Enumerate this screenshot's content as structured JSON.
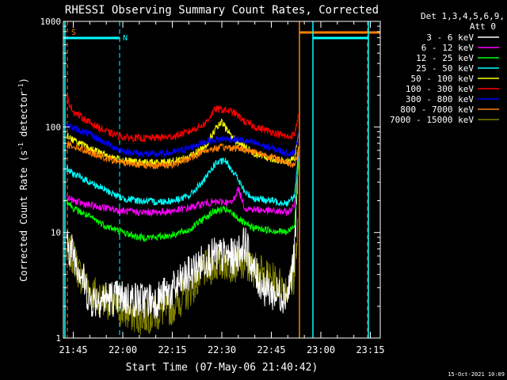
{
  "chart_data": {
    "type": "line",
    "title": "RHESSI Observing Summary Count Rates, Corrected",
    "ylabel": "Corrected Count Rate (s⁻¹ detector⁻¹)",
    "ylabel_main": "Corrected Count Rate (s",
    "ylabel_mid": " detector",
    "ylabel_sup": "-1",
    "ylabel_end": ")",
    "xlabel": "Start Time (07-May-06 21:40:42)",
    "timestamp": "15-Oct-2021 10:09",
    "yscale": "log",
    "ylim": [
      1,
      1000
    ],
    "y_tick_labels": [
      "1",
      "10",
      "100",
      "1000"
    ],
    "xlim_minutes": [
      21.7,
      23.3
    ],
    "x_tick_labels": [
      "21:45",
      "22:00",
      "22:15",
      "22:30",
      "22:45",
      "23:00",
      "23:15"
    ],
    "legend": {
      "placement": "top-right",
      "header1": "Det 1,3,4,5,6,9,",
      "header2": "Att 0"
    },
    "markers": [
      {
        "label": "S",
        "color": "#ff8000"
      },
      {
        "label": "N",
        "color": "#00ffff"
      }
    ],
    "series": [
      {
        "name": "3 - 6 keV",
        "color": "#ffffff",
        "x": [
          "21:43",
          "21:45",
          "21:47",
          "21:50",
          "21:55",
          "22:00",
          "22:05",
          "22:10",
          "22:15",
          "22:20",
          "22:25",
          "22:28",
          "22:31",
          "22:34",
          "22:37",
          "22:40",
          "22:43",
          "22:46",
          "22:50",
          "22:52",
          "22:53",
          "22:54"
        ],
        "y": [
          7.5,
          6.5,
          4.5,
          2.3,
          2.4,
          2.4,
          2.3,
          2.3,
          2.8,
          4,
          5.5,
          6,
          6,
          5.8,
          8,
          4,
          3,
          2.6,
          2.6,
          6,
          40,
          220
        ]
      },
      {
        "name": "6 - 12 keV",
        "color": "#ff00ff",
        "x": [
          "21:43",
          "21:45",
          "21:50",
          "21:55",
          "22:00",
          "22:05",
          "22:10",
          "22:15",
          "22:20",
          "22:25",
          "22:30",
          "22:33",
          "22:35",
          "22:37",
          "22:40",
          "22:45",
          "22:50",
          "22:52",
          "22:53",
          "22:54"
        ],
        "y": [
          22,
          20,
          18,
          17,
          16,
          15.5,
          15.5,
          16,
          17,
          19,
          19.5,
          19,
          26,
          17,
          16.5,
          16,
          15.5,
          18,
          40,
          200
        ]
      },
      {
        "name": "12 - 25 keV",
        "color": "#00ff00",
        "x": [
          "21:43",
          "21:45",
          "21:50",
          "21:55",
          "22:00",
          "22:05",
          "22:10",
          "22:15",
          "22:20",
          "22:25",
          "22:28",
          "22:31",
          "22:34",
          "22:37",
          "22:40",
          "22:45",
          "22:50",
          "22:52",
          "22:53",
          "22:54"
        ],
        "y": [
          20,
          17,
          14,
          11.5,
          10,
          9,
          9,
          9.5,
          10.5,
          14,
          16,
          16.5,
          14.5,
          12,
          11,
          10.5,
          10,
          12,
          35,
          180
        ]
      },
      {
        "name": "25 - 50 keV",
        "color": "#00ffff",
        "x": [
          "21:43",
          "21:45",
          "21:50",
          "21:55",
          "22:00",
          "22:05",
          "22:10",
          "22:15",
          "22:20",
          "22:25",
          "22:28",
          "22:31",
          "22:34",
          "22:37",
          "22:40",
          "22:45",
          "22:50",
          "22:52",
          "22:53",
          "22:54"
        ],
        "y": [
          40,
          36,
          30,
          25,
          21,
          20,
          19.5,
          20,
          22,
          32,
          45,
          48,
          36,
          24,
          21,
          20,
          19,
          22,
          45,
          200
        ]
      },
      {
        "name": "50 - 100 keV",
        "color": "#ffff00",
        "x": [
          "21:43",
          "21:45",
          "21:50",
          "21:55",
          "22:00",
          "22:05",
          "22:10",
          "22:15",
          "22:20",
          "22:25",
          "22:28",
          "22:30",
          "22:32",
          "22:34",
          "22:37",
          "22:40",
          "22:45",
          "22:50",
          "22:52",
          "22:53",
          "22:54"
        ],
        "y": [
          85,
          75,
          62,
          54,
          48,
          46,
          46,
          47,
          52,
          65,
          95,
          110,
          90,
          75,
          64,
          56,
          50,
          46,
          50,
          80,
          150
        ]
      },
      {
        "name": "100 - 300 keV",
        "color": "#ff0000",
        "x": [
          "21:43",
          "21:45",
          "21:50",
          "21:55",
          "22:00",
          "22:05",
          "22:10",
          "22:15",
          "22:20",
          "22:25",
          "22:28",
          "22:31",
          "22:34",
          "22:37",
          "22:40",
          "22:45",
          "22:50",
          "22:52",
          "22:53",
          "22:54"
        ],
        "y": [
          190,
          140,
          110,
          90,
          80,
          78,
          79,
          81,
          90,
          108,
          148,
          145,
          135,
          112,
          100,
          90,
          80,
          85,
          120,
          230
        ]
      },
      {
        "name": "300 - 800 keV",
        "color": "#0000ff",
        "x": [
          "21:43",
          "21:45",
          "21:50",
          "21:55",
          "22:00",
          "22:05",
          "22:10",
          "22:15",
          "22:20",
          "22:25",
          "22:30",
          "22:35",
          "22:40",
          "22:45",
          "22:50",
          "22:52",
          "22:53",
          "22:54"
        ],
        "y": [
          103,
          98,
          85,
          70,
          59,
          56,
          55,
          57,
          63,
          73,
          77,
          76,
          70,
          63,
          56,
          58,
          75,
          140
        ]
      },
      {
        "name": "800 - 7000 keV",
        "color": "#ff8000",
        "x": [
          "21:43",
          "21:45",
          "21:50",
          "21:55",
          "22:00",
          "22:05",
          "22:10",
          "22:15",
          "22:20",
          "22:25",
          "22:30",
          "22:35",
          "22:40",
          "22:45",
          "22:50",
          "22:52",
          "22:53",
          "22:54"
        ],
        "y": [
          68,
          66,
          58,
          50,
          46,
          44,
          43,
          44,
          50,
          60,
          64,
          63,
          58,
          52,
          46,
          44,
          55,
          110
        ]
      },
      {
        "name": "7000 - 15000 keV",
        "color": "#808000",
        "x": [
          "21:43",
          "21:45",
          "21:47",
          "21:50",
          "21:55",
          "22:00",
          "22:05",
          "22:10",
          "22:15",
          "22:20",
          "22:25",
          "22:30",
          "22:35",
          "22:40",
          "22:45",
          "22:50",
          "22:52",
          "22:53"
        ],
        "y": [
          6.5,
          6,
          4,
          2.8,
          2.3,
          1.8,
          1.6,
          1.7,
          2,
          2.8,
          4.5,
          5.2,
          5,
          4.5,
          3.5,
          3,
          4,
          10
        ]
      }
    ]
  }
}
